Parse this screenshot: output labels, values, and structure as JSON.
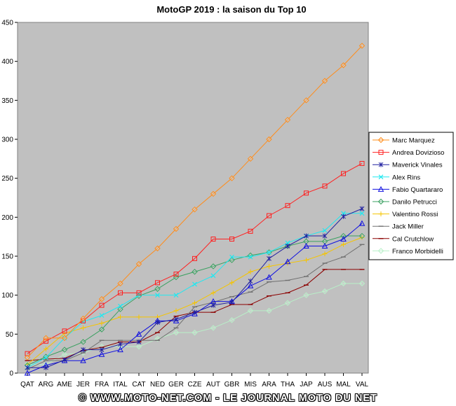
{
  "chart_data": {
    "type": "line",
    "title": "MotoGP 2019 : la saison du Top 10",
    "xlabel": "",
    "ylabel": "",
    "categories": [
      "QAT",
      "ARG",
      "AME",
      "JER",
      "FRA",
      "ITAL",
      "CAT",
      "NED",
      "GER",
      "CZE",
      "AUT",
      "GBR",
      "MIS",
      "ARA",
      "THA",
      "JAP",
      "AUS",
      "MAL",
      "VAL"
    ],
    "ylim": [
      0,
      450
    ],
    "yticks": [
      0,
      50,
      100,
      150,
      200,
      250,
      300,
      350,
      400,
      450
    ],
    "grid": false,
    "plot_background": "#c0c0c0",
    "legend_position": "right",
    "series": [
      {
        "name": "Marc Marquez",
        "color": "#ff8c1a",
        "marker": "diamond",
        "values": [
          20,
          45,
          45,
          70,
          95,
          115,
          140,
          160,
          185,
          210,
          230,
          250,
          275,
          300,
          325,
          350,
          375,
          395,
          420
        ]
      },
      {
        "name": "Andrea Dovizioso",
        "color": "#ff2020",
        "marker": "square",
        "values": [
          25,
          41,
          54,
          67,
          87,
          103,
          103,
          116,
          127,
          147,
          172,
          172,
          182,
          202,
          215,
          231,
          240,
          256,
          269
        ]
      },
      {
        "name": "Maverick Vinales",
        "color": "#2020a0",
        "marker": "star",
        "values": [
          7,
          7,
          17,
          30,
          30,
          37,
          40,
          65,
          69,
          78,
          87,
          91,
          118,
          147,
          163,
          176,
          176,
          201,
          211
        ]
      },
      {
        "name": "Alex Rins",
        "color": "#20e8f0",
        "marker": "x",
        "values": [
          7,
          20,
          45,
          66,
          74,
          86,
          100,
          100,
          100,
          114,
          125,
          149,
          149,
          155,
          167,
          176,
          183,
          205,
          205
        ]
      },
      {
        "name": "Fabio Quartararo",
        "color": "#1010e0",
        "marker": "triangle",
        "values": [
          0,
          10,
          16,
          16,
          24,
          30,
          50,
          67,
          67,
          76,
          92,
          92,
          112,
          123,
          143,
          163,
          163,
          172,
          192
        ]
      },
      {
        "name": "Danilo Petrucci",
        "color": "#3aa060",
        "marker": "diamond",
        "values": [
          10,
          21,
          30,
          40,
          56,
          82,
          99,
          108,
          123,
          130,
          137,
          145,
          151,
          155,
          163,
          169,
          169,
          176,
          176
        ]
      },
      {
        "name": "Valentino Rossi",
        "color": "#f5c400",
        "marker": "plus",
        "values": [
          11,
          31,
          51,
          58,
          64,
          72,
          72,
          72,
          80,
          90,
          103,
          116,
          130,
          137,
          141,
          145,
          153,
          165,
          174
        ]
      },
      {
        "name": "Jack Miller",
        "color": "#707070",
        "marker": "dash",
        "values": [
          5,
          16,
          16,
          26,
          42,
          42,
          42,
          42,
          58,
          85,
          91,
          98,
          104,
          117,
          119,
          124,
          141,
          149,
          165
        ]
      },
      {
        "name": "Cal Crutchlow",
        "color": "#8b0000",
        "marker": "dash",
        "values": [
          16,
          18,
          19,
          29,
          33,
          40,
          40,
          52,
          73,
          78,
          78,
          88,
          88,
          99,
          103,
          113,
          133,
          133,
          133
        ]
      },
      {
        "name": "Franco Morbidelli",
        "color": "#b8f0c8",
        "marker": "diamond",
        "values": [
          11,
          11,
          24,
          26,
          34,
          34,
          34,
          44,
          52,
          52,
          58,
          68,
          80,
          80,
          90,
          100,
          105,
          115,
          115
        ]
      }
    ]
  },
  "footer": {
    "text": "© WWW.MOTO-NET.COM - LE JOURNAL MOTO DU NET"
  }
}
